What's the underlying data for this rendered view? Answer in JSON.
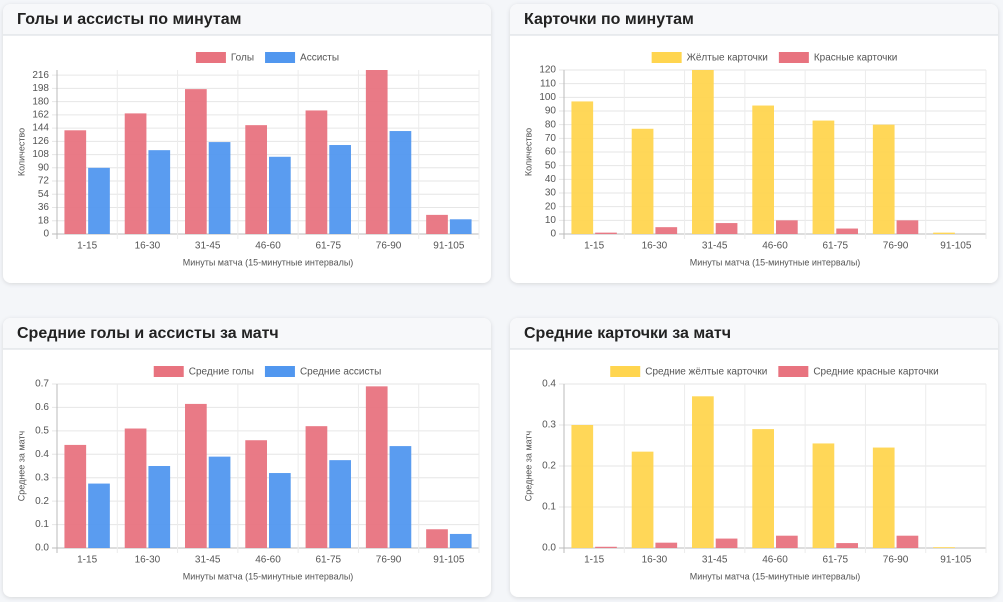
{
  "chart_data": [
    {
      "type": "bar",
      "title": "Голы и ассисты по минутам",
      "xlabel": "Минуты матча (15-минутные интервалы)",
      "ylabel": "Количество",
      "categories": [
        "1-15",
        "16-30",
        "31-45",
        "46-60",
        "61-75",
        "76-90",
        "91-105"
      ],
      "series": [
        {
          "name": "Голы",
          "color": "#e8737f",
          "values": [
            141,
            164,
            197,
            148,
            168,
            223,
            26
          ]
        },
        {
          "name": "Ассисты",
          "color": "#5197ef",
          "values": [
            90,
            114,
            125,
            105,
            121,
            140,
            20
          ]
        }
      ],
      "ylim": [
        0,
        223
      ],
      "yticks": [
        0,
        18,
        36,
        54,
        72,
        90,
        108,
        126,
        144,
        162,
        180,
        198,
        216
      ],
      "grid": true,
      "legend": "top"
    },
    {
      "type": "bar",
      "title": "Карточки по минутам",
      "xlabel": "Минуты матча (15-минутные интервалы)",
      "ylabel": "Количество",
      "categories": [
        "1-15",
        "16-30",
        "31-45",
        "46-60",
        "61-75",
        "76-90",
        "91-105"
      ],
      "series": [
        {
          "name": "Жёлтые карточки",
          "color": "#ffd54f",
          "values": [
            97,
            77,
            120,
            94,
            83,
            80,
            1
          ]
        },
        {
          "name": "Красные карточки",
          "color": "#e8737f",
          "values": [
            1,
            5,
            8,
            10,
            4,
            10,
            0
          ]
        }
      ],
      "ylim": [
        0,
        120
      ],
      "yticks": [
        0,
        10,
        20,
        30,
        40,
        50,
        60,
        70,
        80,
        90,
        100,
        110,
        120
      ],
      "grid": true,
      "legend": "top"
    },
    {
      "type": "bar",
      "title": "Средние голы и ассисты за матч",
      "xlabel": "Минуты матча (15-минутные интервалы)",
      "ylabel": "Среднее за матч",
      "categories": [
        "1-15",
        "16-30",
        "31-45",
        "46-60",
        "61-75",
        "76-90",
        "91-105"
      ],
      "series": [
        {
          "name": "Средние голы",
          "color": "#e8737f",
          "values": [
            0.44,
            0.51,
            0.615,
            0.46,
            0.52,
            0.69,
            0.08
          ]
        },
        {
          "name": "Средние ассисты",
          "color": "#5197ef",
          "values": [
            0.275,
            0.35,
            0.39,
            0.32,
            0.375,
            0.435,
            0.06
          ]
        }
      ],
      "ylim": [
        0,
        0.7
      ],
      "yticks": [
        {
          "value": 0,
          "label": "0.0"
        },
        0.1,
        0.2,
        0.3,
        0.4,
        0.5,
        0.6,
        0.7
      ],
      "grid": true,
      "legend": "top"
    },
    {
      "type": "bar",
      "title": "Средние карточки за матч",
      "xlabel": "Минуты матча (15-минутные интервалы)",
      "ylabel": "Среднее за матч",
      "categories": [
        "1-15",
        "16-30",
        "31-45",
        "46-60",
        "61-75",
        "76-90",
        "91-105"
      ],
      "series": [
        {
          "name": "Средние жёлтые карточки",
          "color": "#ffd54f",
          "values": [
            0.3,
            0.235,
            0.37,
            0.29,
            0.255,
            0.245,
            0.002
          ]
        },
        {
          "name": "Средние красные карточки",
          "color": "#e8737f",
          "values": [
            0.003,
            0.013,
            0.023,
            0.03,
            0.012,
            0.03,
            0
          ]
        }
      ],
      "ylim": [
        0,
        0.4
      ],
      "yticks": [
        {
          "value": 0,
          "label": "0.0"
        },
        0.1,
        0.2,
        0.3,
        0.4
      ],
      "grid": true,
      "legend": "top"
    }
  ]
}
